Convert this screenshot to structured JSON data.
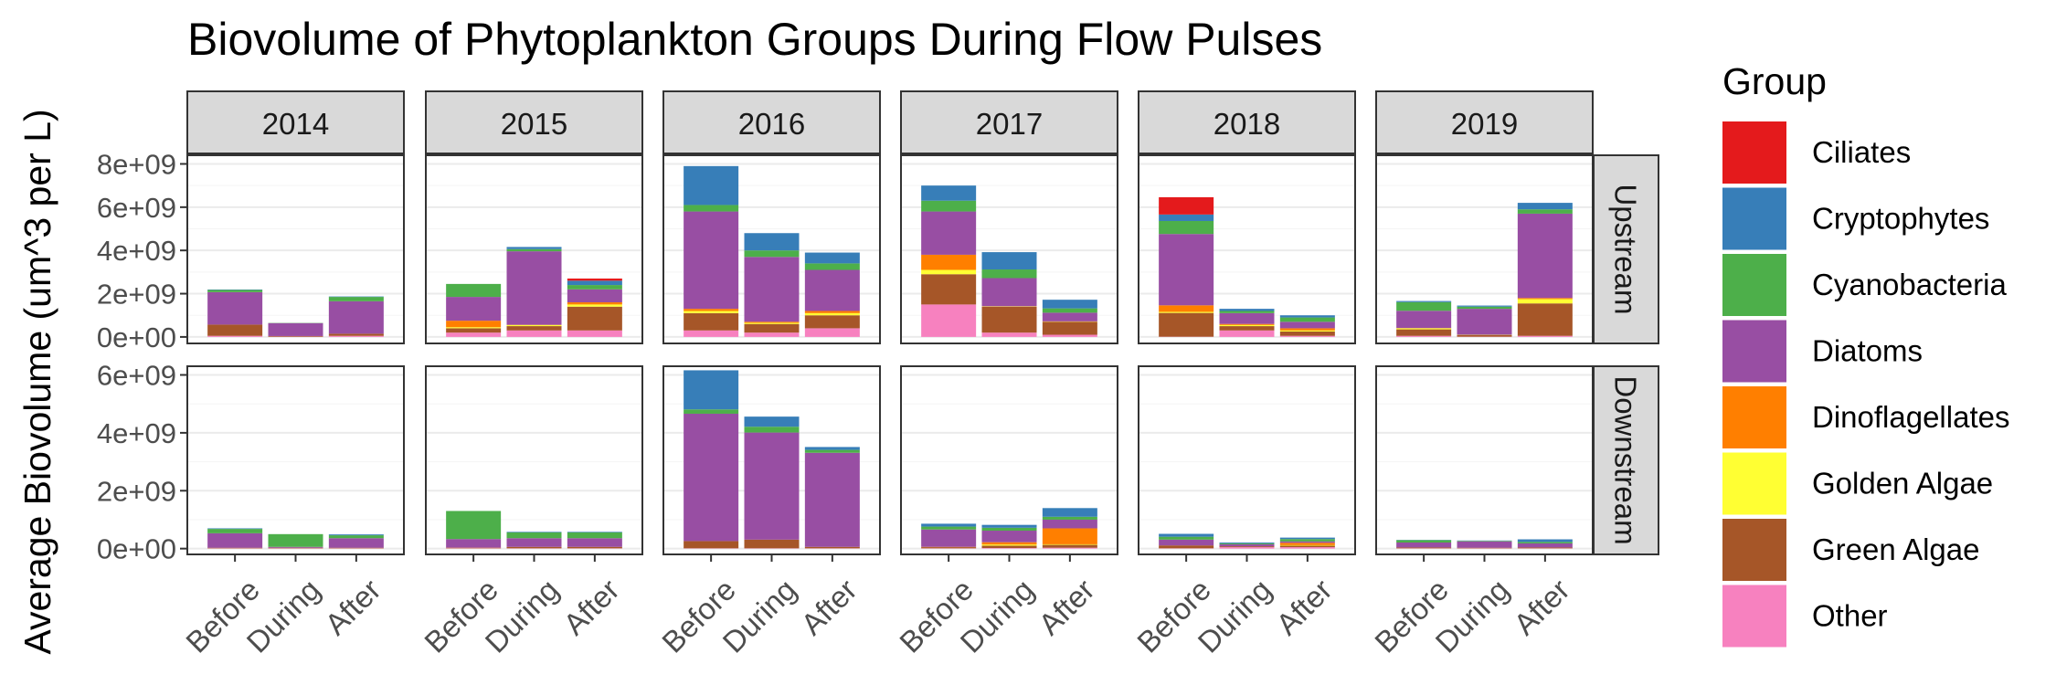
{
  "chart_data": {
    "type": "bar",
    "stacked": true,
    "title": "Biovolume of Phytoplankton Groups During Flow Pulses",
    "ylabel": "Average Biovolume (um^3 per L)",
    "xlabel": "",
    "legend_title": "Group",
    "legend_position": "right",
    "years": [
      "2014",
      "2015",
      "2016",
      "2017",
      "2018",
      "2019"
    ],
    "regions": [
      "Upstream",
      "Downstream"
    ],
    "categories": [
      "Before",
      "During",
      "After"
    ],
    "groups": [
      {
        "name": "Ciliates",
        "color": "#E41A1C"
      },
      {
        "name": "Cryptophytes",
        "color": "#377EB8"
      },
      {
        "name": "Cyanobacteria",
        "color": "#4DAF4A"
      },
      {
        "name": "Diatoms",
        "color": "#984EA3"
      },
      {
        "name": "Dinoflagellates",
        "color": "#FF7F00"
      },
      {
        "name": "Golden Algae",
        "color": "#FFFF33"
      },
      {
        "name": "Green Algae",
        "color": "#A65628"
      },
      {
        "name": "Other",
        "color": "#F781BF"
      }
    ],
    "stack_order_bottom_to_top": [
      "Other",
      "Green Algae",
      "Golden Algae",
      "Dinoflagellates",
      "Diatoms",
      "Cyanobacteria",
      "Cryptophytes",
      "Ciliates"
    ],
    "y_axis": {
      "Upstream": {
        "ticks": [
          0,
          2000000000,
          4000000000,
          6000000000,
          8000000000
        ],
        "tick_labels": [
          "0e+00",
          "2e+09",
          "4e+09",
          "6e+09",
          "8e+09"
        ],
        "ylim": [
          -300000000,
          8400000000
        ]
      },
      "Downstream": {
        "ticks": [
          0,
          2000000000,
          4000000000,
          6000000000
        ],
        "tick_labels": [
          "0e+00",
          "2e+09",
          "4e+09",
          "6e+09"
        ],
        "ylim": [
          -200000000,
          6300000000
        ]
      }
    },
    "values": {
      "Upstream": {
        "2014": {
          "Before": {
            "Other": 50000000.0,
            "Green Algae": 520000000.0,
            "Golden Algae": 0,
            "Dinoflagellates": 0,
            "Diatoms": 1500000000.0,
            "Cyanobacteria": 100000000.0,
            "Cryptophytes": 20000000.0,
            "Ciliates": 0
          },
          "During": {
            "Other": 10000000.0,
            "Green Algae": 30000000.0,
            "Golden Algae": 0,
            "Dinoflagellates": 0,
            "Diatoms": 600000000.0,
            "Cyanobacteria": 10000000.0,
            "Cryptophytes": 0,
            "Ciliates": 0
          },
          "After": {
            "Other": 50000000.0,
            "Green Algae": 100000000.0,
            "Golden Algae": 0,
            "Dinoflagellates": 0,
            "Diatoms": 1500000000.0,
            "Cyanobacteria": 200000000.0,
            "Cryptophytes": 20000000.0,
            "Ciliates": 0
          }
        },
        "2015": {
          "Before": {
            "Other": 200000000.0,
            "Green Algae": 200000000.0,
            "Golden Algae": 50000000.0,
            "Dinoflagellates": 300000000.0,
            "Diatoms": 1100000000.0,
            "Cyanobacteria": 600000000.0,
            "Cryptophytes": 0,
            "Ciliates": 0
          },
          "During": {
            "Other": 300000000.0,
            "Green Algae": 200000000.0,
            "Golden Algae": 50000000.0,
            "Dinoflagellates": 10000000.0,
            "Diatoms": 3400000000.0,
            "Cyanobacteria": 100000000.0,
            "Cryptophytes": 100000000.0,
            "Ciliates": 0
          },
          "After": {
            "Other": 300000000.0,
            "Green Algae": 1100000000.0,
            "Golden Algae": 100000000.0,
            "Dinoflagellates": 100000000.0,
            "Diatoms": 600000000.0,
            "Cyanobacteria": 200000000.0,
            "Cryptophytes": 200000000.0,
            "Ciliates": 100000000.0
          }
        },
        "2016": {
          "Before": {
            "Other": 300000000.0,
            "Green Algae": 800000000.0,
            "Golden Algae": 100000000.0,
            "Dinoflagellates": 100000000.0,
            "Diatoms": 4500000000.0,
            "Cyanobacteria": 300000000.0,
            "Cryptophytes": 1800000000.0,
            "Ciliates": 0
          },
          "During": {
            "Other": 200000000.0,
            "Green Algae": 400000000.0,
            "Golden Algae": 50000000.0,
            "Dinoflagellates": 50000000.0,
            "Diatoms": 3000000000.0,
            "Cyanobacteria": 300000000.0,
            "Cryptophytes": 800000000.0,
            "Ciliates": 0
          },
          "After": {
            "Other": 400000000.0,
            "Green Algae": 600000000.0,
            "Golden Algae": 100000000.0,
            "Dinoflagellates": 100000000.0,
            "Diatoms": 1900000000.0,
            "Cyanobacteria": 300000000.0,
            "Cryptophytes": 500000000.0,
            "Ciliates": 0
          }
        },
        "2017": {
          "Before": {
            "Other": 1500000000.0,
            "Green Algae": 1400000000.0,
            "Golden Algae": 200000000.0,
            "Dinoflagellates": 700000000.0,
            "Diatoms": 2000000000.0,
            "Cyanobacteria": 500000000.0,
            "Cryptophytes": 700000000.0,
            "Ciliates": 0
          },
          "During": {
            "Other": 200000000.0,
            "Green Algae": 1200000000.0,
            "Golden Algae": 10000000.0,
            "Dinoflagellates": 10000000.0,
            "Diatoms": 1300000000.0,
            "Cyanobacteria": 400000000.0,
            "Cryptophytes": 800000000.0,
            "Ciliates": 0
          },
          "After": {
            "Other": 100000000.0,
            "Green Algae": 600000000.0,
            "Golden Algae": 10000000.0,
            "Dinoflagellates": 10000000.0,
            "Diatoms": 400000000.0,
            "Cyanobacteria": 200000000.0,
            "Cryptophytes": 400000000.0,
            "Ciliates": 0
          }
        },
        "2018": {
          "Before": {
            "Other": 10000000.0,
            "Green Algae": 1100000000.0,
            "Golden Algae": 50000000.0,
            "Dinoflagellates": 300000000.0,
            "Diatoms": 3300000000.0,
            "Cyanobacteria": 600000000.0,
            "Cryptophytes": 300000000.0,
            "Ciliates": 800000000.0
          },
          "During": {
            "Other": 300000000.0,
            "Green Algae": 200000000.0,
            "Golden Algae": 50000000.0,
            "Dinoflagellates": 50000000.0,
            "Diatoms": 500000000.0,
            "Cyanobacteria": 100000000.0,
            "Cryptophytes": 100000000.0,
            "Ciliates": 0
          },
          "After": {
            "Other": 50000000.0,
            "Green Algae": 200000000.0,
            "Golden Algae": 50000000.0,
            "Dinoflagellates": 100000000.0,
            "Diatoms": 300000000.0,
            "Cyanobacteria": 200000000.0,
            "Cryptophytes": 100000000.0,
            "Ciliates": 0
          }
        },
        "2019": {
          "Before": {
            "Other": 50000000.0,
            "Green Algae": 300000000.0,
            "Golden Algae": 50000000.0,
            "Dinoflagellates": 10000000.0,
            "Diatoms": 800000000.0,
            "Cyanobacteria": 400000000.0,
            "Cryptophytes": 50000000.0,
            "Ciliates": 0
          },
          "During": {
            "Other": 10000000.0,
            "Green Algae": 80000000.0,
            "Golden Algae": 10000000.0,
            "Dinoflagellates": 0,
            "Diatoms": 1200000000.0,
            "Cyanobacteria": 100000000.0,
            "Cryptophytes": 50000000.0,
            "Ciliates": 0
          },
          "After": {
            "Other": 50000000.0,
            "Green Algae": 1500000000.0,
            "Golden Algae": 200000000.0,
            "Dinoflagellates": 50000000.0,
            "Diatoms": 3900000000.0,
            "Cyanobacteria": 200000000.0,
            "Cryptophytes": 300000000.0,
            "Ciliates": 0
          }
        }
      },
      "Downstream": {
        "2014": {
          "Before": {
            "Other": 10000000.0,
            "Green Algae": 20000000.0,
            "Golden Algae": 0,
            "Dinoflagellates": 0,
            "Diatoms": 500000000.0,
            "Cyanobacteria": 150000000.0,
            "Cryptophytes": 20000000.0,
            "Ciliates": 0
          },
          "During": {
            "Other": 10000000.0,
            "Green Algae": 20000000.0,
            "Golden Algae": 0,
            "Dinoflagellates": 0,
            "Diatoms": 30000000.0,
            "Cyanobacteria": 440000000.0,
            "Cryptophytes": 0,
            "Ciliates": 0
          },
          "After": {
            "Other": 10000000.0,
            "Green Algae": 20000000.0,
            "Golden Algae": 0,
            "Dinoflagellates": 0,
            "Diatoms": 330000000.0,
            "Cyanobacteria": 100000000.0,
            "Cryptophytes": 30000000.0,
            "Ciliates": 0
          }
        },
        "2015": {
          "Before": {
            "Other": 10000000.0,
            "Green Algae": 10000000.0,
            "Golden Algae": 0,
            "Dinoflagellates": 10000000.0,
            "Diatoms": 300000000.0,
            "Cyanobacteria": 970000000.0,
            "Cryptophytes": 0,
            "Ciliates": 0
          },
          "During": {
            "Other": 10000000.0,
            "Green Algae": 50000000.0,
            "Golden Algae": 0,
            "Dinoflagellates": 0,
            "Diatoms": 300000000.0,
            "Cyanobacteria": 200000000.0,
            "Cryptophytes": 20000000.0,
            "Ciliates": 0
          },
          "After": {
            "Other": 10000000.0,
            "Green Algae": 50000000.0,
            "Golden Algae": 0,
            "Dinoflagellates": 0,
            "Diatoms": 300000000.0,
            "Cyanobacteria": 200000000.0,
            "Cryptophytes": 20000000.0,
            "Ciliates": 0
          }
        },
        "2016": {
          "Before": {
            "Other": 10000000.0,
            "Green Algae": 250000000.0,
            "Golden Algae": 0,
            "Dinoflagellates": 0,
            "Diatoms": 4400000000.0,
            "Cyanobacteria": 150000000.0,
            "Cryptophytes": 1350000000.0,
            "Ciliates": 0
          },
          "During": {
            "Other": 10000000.0,
            "Green Algae": 300000000.0,
            "Golden Algae": 0,
            "Dinoflagellates": 0,
            "Diatoms": 3700000000.0,
            "Cyanobacteria": 200000000.0,
            "Cryptophytes": 350000000.0,
            "Ciliates": 0
          },
          "After": {
            "Other": 10000000.0,
            "Green Algae": 50000000.0,
            "Golden Algae": 0,
            "Dinoflagellates": 0,
            "Diatoms": 3250000000.0,
            "Cyanobacteria": 100000000.0,
            "Cryptophytes": 100000000.0,
            "Ciliates": 0
          }
        },
        "2017": {
          "Before": {
            "Other": 10000000.0,
            "Green Algae": 40000000.0,
            "Golden Algae": 0,
            "Dinoflagellates": 10000000.0,
            "Diatoms": 600000000.0,
            "Cyanobacteria": 100000000.0,
            "Cryptophytes": 100000000.0,
            "Ciliates": 0
          },
          "During": {
            "Other": 20000000.0,
            "Green Algae": 80000000.0,
            "Golden Algae": 40000000.0,
            "Dinoflagellates": 80000000.0,
            "Diatoms": 400000000.0,
            "Cyanobacteria": 100000000.0,
            "Cryptophytes": 100000000.0,
            "Ciliates": 0
          },
          "After": {
            "Other": 30000000.0,
            "Green Algae": 100000000.0,
            "Golden Algae": 20000000.0,
            "Dinoflagellates": 550000000.0,
            "Diatoms": 300000000.0,
            "Cyanobacteria": 100000000.0,
            "Cryptophytes": 300000000.0,
            "Ciliates": 0
          }
        },
        "2018": {
          "Before": {
            "Other": 10000000.0,
            "Green Algae": 100000000.0,
            "Golden Algae": 0,
            "Dinoflagellates": 0,
            "Diatoms": 200000000.0,
            "Cyanobacteria": 100000000.0,
            "Cryptophytes": 100000000.0,
            "Ciliates": 0
          },
          "During": {
            "Other": 50000000.0,
            "Green Algae": 30000000.0,
            "Golden Algae": 0,
            "Dinoflagellates": 0,
            "Diatoms": 70000000.0,
            "Cyanobacteria": 30000000.0,
            "Cryptophytes": 30000000.0,
            "Ciliates": 0
          },
          "After": {
            "Other": 50000000.0,
            "Green Algae": 50000000.0,
            "Golden Algae": 20000000.0,
            "Dinoflagellates": 80000000.0,
            "Diatoms": 50000000.0,
            "Cyanobacteria": 80000000.0,
            "Cryptophytes": 50000000.0,
            "Ciliates": 0
          }
        },
        "2019": {
          "Before": {
            "Other": 10000000.0,
            "Green Algae": 30000000.0,
            "Golden Algae": 0,
            "Dinoflagellates": 0,
            "Diatoms": 170000000.0,
            "Cyanobacteria": 80000000.0,
            "Cryptophytes": 10000000.0,
            "Ciliates": 0
          },
          "During": {
            "Other": 10000000.0,
            "Green Algae": 20000000.0,
            "Golden Algae": 0,
            "Dinoflagellates": 0,
            "Diatoms": 220000000.0,
            "Cyanobacteria": 20000000.0,
            "Cryptophytes": 10000000.0,
            "Ciliates": 0
          },
          "After": {
            "Other": 10000000.0,
            "Green Algae": 30000000.0,
            "Golden Algae": 0,
            "Dinoflagellates": 0,
            "Diatoms": 140000000.0,
            "Cyanobacteria": 50000000.0,
            "Cryptophytes": 90000000.0,
            "Ciliates": 0
          }
        }
      }
    }
  }
}
